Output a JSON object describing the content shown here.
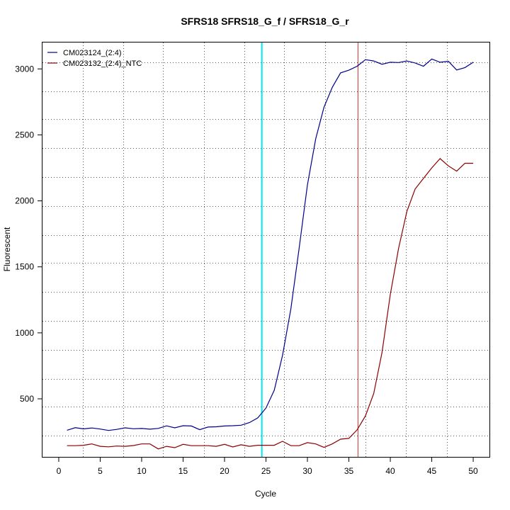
{
  "chart_data": {
    "type": "line",
    "title": "SFRS18  SFRS18_G_f / SFRS18_G_r",
    "xlabel": "Cycle",
    "ylabel": "Fluorescent",
    "xlim": [
      -1.96,
      51.96
    ],
    "ylim": [
      60,
      3200
    ],
    "x_ticks": [
      0,
      5,
      10,
      15,
      20,
      25,
      30,
      35,
      40,
      45,
      50
    ],
    "y_ticks": [
      500,
      1000,
      1500,
      2000,
      2500,
      3000
    ],
    "grid": true,
    "grid_style": "dotted",
    "x_grid_lines": [
      2.9,
      7.8,
      12.6,
      17.5,
      22.4,
      27.2,
      32.1,
      37.0,
      41.9,
      46.8
    ],
    "y_grid_lines": [
      220,
      440,
      650,
      870,
      1090,
      1310,
      1530,
      1740,
      1960,
      2180,
      2400,
      2620,
      2830,
      3050
    ],
    "legend_position": "top-left",
    "series": [
      {
        "name": "CM023124_(2:4)",
        "color": "#00008B",
        "x": [
          1,
          2,
          3,
          4,
          5,
          6,
          7,
          8,
          9,
          10,
          11,
          12,
          13,
          14,
          15,
          16,
          17,
          18,
          19,
          20,
          21,
          22,
          23,
          24,
          25,
          26,
          27,
          28,
          29,
          30,
          31,
          32,
          33,
          34,
          35,
          36,
          37,
          38,
          39,
          40,
          41,
          42,
          43,
          44,
          45,
          46,
          47,
          48,
          49,
          50
        ],
        "values": [
          262,
          281,
          272,
          279,
          271,
          260,
          268,
          280,
          273,
          275,
          270,
          276,
          295,
          280,
          296,
          294,
          266,
          286,
          288,
          294,
          296,
          300,
          320,
          355,
          430,
          565,
          830,
          1180,
          1640,
          2120,
          2470,
          2710,
          2860,
          2970,
          2990,
          3020,
          3070,
          3060,
          3035,
          3050,
          3048,
          3060,
          3045,
          3020,
          3075,
          3050,
          3058,
          2992,
          3010,
          3050
        ]
      },
      {
        "name": "CM023132_(2:4)_NTC",
        "color": "#8B0000",
        "x": [
          1,
          2,
          3,
          4,
          5,
          6,
          7,
          8,
          9,
          10,
          11,
          12,
          13,
          14,
          15,
          16,
          17,
          18,
          19,
          20,
          21,
          22,
          23,
          24,
          25,
          26,
          27,
          28,
          29,
          30,
          31,
          32,
          33,
          34,
          35,
          36,
          37,
          38,
          39,
          40,
          41,
          42,
          43,
          44,
          45,
          46,
          47,
          48,
          49,
          50
        ],
        "values": [
          145,
          145,
          148,
          158,
          140,
          136,
          142,
          140,
          146,
          158,
          158,
          120,
          140,
          130,
          155,
          145,
          145,
          145,
          140,
          155,
          135,
          152,
          140,
          148,
          148,
          148,
          178,
          145,
          145,
          168,
          158,
          132,
          158,
          194,
          200,
          265,
          370,
          540,
          850,
          1290,
          1640,
          1920,
          2090,
          2170,
          2250,
          2320,
          2265,
          2225,
          2285,
          2285
        ]
      }
    ],
    "vertical_lines": [
      {
        "x": 24.5,
        "color": "#00E5EE"
      },
      {
        "x": 36.1,
        "color": "#CD3333"
      }
    ]
  }
}
